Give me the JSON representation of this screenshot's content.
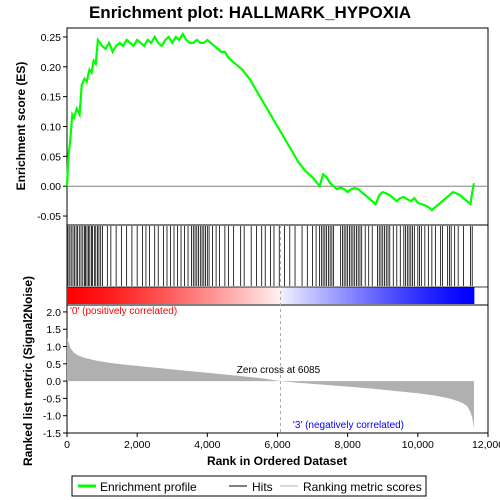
{
  "chart_data": {
    "type": "line",
    "title": "Enrichment plot: HALLMARK_HYPOXIA",
    "top_panel": {
      "ylabel": "Enrichment score (ES)",
      "ylim": [
        -0.065,
        0.265
      ],
      "yticks": [
        -0.05,
        0.0,
        0.05,
        0.1,
        0.15,
        0.2,
        0.25
      ],
      "ytick_labels": [
        "-0.05",
        "0.00",
        "0.05",
        "0.10",
        "0.15",
        "0.20",
        "0.25"
      ],
      "line_color": "#00ff00",
      "x": [
        0,
        40,
        90,
        150,
        200,
        280,
        360,
        420,
        500,
        560,
        640,
        700,
        760,
        820,
        880,
        940,
        1000,
        1100,
        1200,
        1300,
        1400,
        1500,
        1600,
        1700,
        1800,
        1900,
        2000,
        2100,
        2200,
        2300,
        2400,
        2500,
        2600,
        2700,
        2800,
        2900,
        3000,
        3100,
        3200,
        3300,
        3400,
        3500,
        3600,
        3700,
        3800,
        3900,
        4000,
        4100,
        4200,
        4300,
        4400,
        4500,
        4600,
        4700,
        4800,
        4900,
        5000,
        5200,
        5400,
        5600,
        5800,
        6000,
        6200,
        6400,
        6600,
        6800,
        7000,
        7200,
        7300,
        7400,
        7500,
        7600,
        7700,
        7800,
        7900,
        8000,
        8100,
        8200,
        8300,
        8400,
        8500,
        8600,
        8700,
        8800,
        8900,
        9000,
        9100,
        9200,
        9300,
        9400,
        9500,
        9600,
        9700,
        9800,
        9900,
        10000,
        10100,
        10200,
        10300,
        10400,
        10500,
        10600,
        10700,
        10800,
        10900,
        11000,
        11100,
        11200,
        11300,
        11400,
        11500,
        11550,
        11600
      ],
      "values": [
        0.0,
        0.05,
        0.075,
        0.12,
        0.115,
        0.13,
        0.12,
        0.17,
        0.18,
        0.175,
        0.195,
        0.19,
        0.21,
        0.205,
        0.245,
        0.24,
        0.235,
        0.23,
        0.24,
        0.225,
        0.235,
        0.24,
        0.235,
        0.245,
        0.24,
        0.235,
        0.245,
        0.24,
        0.235,
        0.245,
        0.24,
        0.25,
        0.24,
        0.235,
        0.245,
        0.25,
        0.24,
        0.25,
        0.245,
        0.255,
        0.245,
        0.24,
        0.24,
        0.245,
        0.24,
        0.24,
        0.245,
        0.24,
        0.235,
        0.23,
        0.225,
        0.225,
        0.215,
        0.21,
        0.205,
        0.2,
        0.195,
        0.18,
        0.16,
        0.14,
        0.12,
        0.1,
        0.08,
        0.06,
        0.04,
        0.025,
        0.015,
        0.0,
        0.02,
        0.015,
        0.005,
        0.0,
        -0.005,
        -0.002,
        -0.005,
        -0.01,
        -0.005,
        -0.003,
        -0.005,
        -0.01,
        -0.015,
        -0.02,
        -0.025,
        -0.03,
        -0.015,
        -0.01,
        -0.012,
        -0.015,
        -0.02,
        -0.025,
        -0.02,
        -0.018,
        -0.022,
        -0.025,
        -0.02,
        -0.028,
        -0.03,
        -0.032,
        -0.035,
        -0.04,
        -0.035,
        -0.03,
        -0.025,
        -0.02,
        -0.015,
        -0.01,
        -0.012,
        -0.015,
        -0.02,
        -0.025,
        -0.03,
        -0.01,
        0.005
      ]
    },
    "hits_panel": {
      "label": "Hits",
      "hit_positions": [
        30,
        80,
        120,
        170,
        210,
        260,
        300,
        350,
        400,
        450,
        500,
        530,
        570,
        610,
        650,
        700,
        730,
        780,
        820,
        870,
        910,
        960,
        1010,
        1150,
        1250,
        1400,
        1550,
        1700,
        1850,
        2000,
        2150,
        2250,
        2350,
        2500,
        2600,
        2750,
        2850,
        2950,
        3050,
        3150,
        3250,
        3350,
        3450,
        3550,
        3600,
        3650,
        3700,
        3750,
        3800,
        3850,
        3900,
        3950,
        4000,
        4050,
        4150,
        4250,
        4350,
        4500,
        4600,
        4750,
        4950,
        5050,
        5250,
        5400,
        5550,
        5650,
        5800,
        5900,
        6050,
        6200,
        6350,
        6500,
        6700,
        6850,
        7000,
        7100,
        7200,
        7250,
        7300,
        7350,
        7400,
        7450,
        7500,
        7550,
        7600,
        7800,
        7850,
        7900,
        7950,
        8000,
        8050,
        8100,
        8150,
        8200,
        8250,
        8300,
        8350,
        8400,
        8500,
        8600,
        8700,
        8850,
        8900,
        8950,
        9000,
        9050,
        9100,
        9150,
        9200,
        9300,
        9400,
        9500,
        9600,
        9650,
        9700,
        9750,
        9800,
        9850,
        9900,
        10000,
        10050,
        10100,
        10200,
        10300,
        10400,
        10500,
        10650,
        10700,
        10850,
        10900,
        10950,
        11050,
        11150,
        11300,
        11500,
        11550
      ]
    },
    "metric_panel": {
      "ylabel": "Ranked list metric (Signal2Noise)",
      "ylim": [
        -1.5,
        2.2
      ],
      "yticks": [
        -1.5,
        -1.0,
        -0.5,
        0.0,
        0.5,
        1.0,
        1.5,
        2.0
      ],
      "ytick_labels": [
        "-1.5",
        "-1.0",
        "-0.5",
        "0.0",
        "0.5",
        "1.0",
        "1.5",
        "2.0"
      ],
      "x": [
        0,
        50,
        100,
        200,
        300,
        500,
        800,
        1200,
        1600,
        2000,
        2500,
        3000,
        3500,
        4000,
        4500,
        5000,
        5500,
        6085,
        6500,
        7000,
        7500,
        8000,
        8500,
        9000,
        9500,
        10000,
        10500,
        10800,
        11000,
        11200,
        11300,
        11400,
        11450,
        11500,
        11550,
        11600
      ],
      "values": [
        1.25,
        1.1,
        0.95,
        0.82,
        0.75,
        0.67,
        0.6,
        0.53,
        0.48,
        0.44,
        0.39,
        0.34,
        0.29,
        0.24,
        0.19,
        0.14,
        0.09,
        0.0,
        -0.04,
        -0.08,
        -0.12,
        -0.16,
        -0.2,
        -0.25,
        -0.3,
        -0.35,
        -0.42,
        -0.48,
        -0.53,
        -0.6,
        -0.65,
        -0.72,
        -0.8,
        -0.9,
        -1.05,
        -1.35
      ],
      "fill_color": "#b0b0b0",
      "zero_cross_label": "Zero cross at 6085",
      "zero_cross": 6085,
      "pos_label": "'0' (positively correlated)",
      "neg_label": "'3' (negatively correlated)",
      "pos_color": "#ff0000",
      "neg_color": "#0000ff"
    },
    "xlabel": "Rank in Ordered Dataset",
    "xlim": [
      0,
      12000
    ],
    "xticks": [
      0,
      2000,
      4000,
      6000,
      8000,
      10000,
      12000
    ],
    "xtick_labels": [
      "0",
      "2,000",
      "4,000",
      "6,000",
      "8,000",
      "10,000",
      "12,000"
    ],
    "n_genes": 11600,
    "legend": [
      {
        "name": "Enrichment profile",
        "color": "#00ff00"
      },
      {
        "name": "Hits",
        "color": "#000000"
      },
      {
        "name": "Ranking metric scores",
        "color": "#b0b0b0"
      }
    ]
  }
}
